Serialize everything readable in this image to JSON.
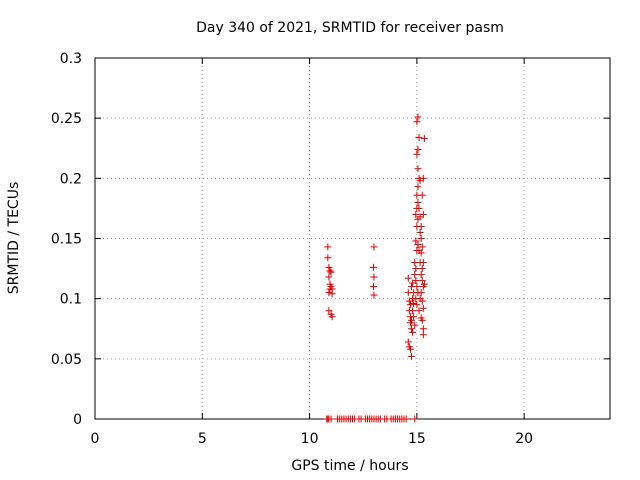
{
  "chart_data": {
    "type": "scatter",
    "title": "Day 340 of 2021, SRMTID for receiver pasm",
    "xlabel": "GPS time / hours",
    "ylabel": "SRMTID / TECUs",
    "xlim": [
      0,
      24
    ],
    "ylim": [
      0,
      0.3
    ],
    "xticks": [
      0,
      5,
      10,
      15,
      20
    ],
    "yticks": [
      0,
      0.05,
      0.1,
      0.15,
      0.2,
      0.25,
      0.3
    ],
    "xtick_labels": [
      "0",
      "5",
      "10",
      "15",
      "20"
    ],
    "ytick_labels": [
      "0",
      "0.05",
      "0.1",
      "0.15",
      "0.2",
      "0.25",
      "0.3"
    ],
    "grid": true,
    "marker": "+",
    "color": "#e00000",
    "series": [
      {
        "points": [
          [
            10.8,
            0
          ],
          [
            10.85,
            0
          ],
          [
            10.9,
            0
          ],
          [
            11.0,
            0
          ],
          [
            11.3,
            0
          ],
          [
            11.4,
            0
          ],
          [
            11.5,
            0
          ],
          [
            11.6,
            0
          ],
          [
            11.7,
            0
          ],
          [
            11.8,
            0
          ],
          [
            11.9,
            0
          ],
          [
            12.0,
            0
          ],
          [
            12.1,
            0
          ],
          [
            12.3,
            0
          ],
          [
            12.4,
            0
          ],
          [
            12.6,
            0
          ],
          [
            12.7,
            0
          ],
          [
            12.8,
            0
          ],
          [
            12.9,
            0
          ],
          [
            13.0,
            0
          ],
          [
            13.1,
            0
          ],
          [
            13.2,
            0
          ],
          [
            13.3,
            0
          ],
          [
            13.5,
            0
          ],
          [
            13.6,
            0
          ],
          [
            13.8,
            0
          ],
          [
            13.9,
            0
          ],
          [
            14.0,
            0
          ],
          [
            14.1,
            0
          ],
          [
            14.2,
            0
          ],
          [
            14.3,
            0
          ],
          [
            14.4,
            0
          ],
          [
            14.5,
            0
          ],
          [
            14.9,
            0
          ],
          [
            10.85,
            0.143
          ],
          [
            10.85,
            0.134
          ],
          [
            10.9,
            0.126
          ],
          [
            10.95,
            0.123
          ],
          [
            11.0,
            0.122
          ],
          [
            10.9,
            0.118
          ],
          [
            10.95,
            0.112
          ],
          [
            11.0,
            0.11
          ],
          [
            11.05,
            0.108
          ],
          [
            10.9,
            0.105
          ],
          [
            10.95,
            0.108
          ],
          [
            11.05,
            0.104
          ],
          [
            10.9,
            0.09
          ],
          [
            11.0,
            0.087
          ],
          [
            11.05,
            0.085
          ],
          [
            13.0,
            0.143
          ],
          [
            12.98,
            0.126
          ],
          [
            13.0,
            0.118
          ],
          [
            12.98,
            0.11
          ],
          [
            13.0,
            0.103
          ],
          [
            14.6,
            0.117
          ],
          [
            14.6,
            0.105
          ],
          [
            14.65,
            0.098
          ],
          [
            14.7,
            0.095
          ],
          [
            14.65,
            0.09
          ],
          [
            14.7,
            0.085
          ],
          [
            14.75,
            0.082
          ],
          [
            14.7,
            0.08
          ],
          [
            14.75,
            0.075
          ],
          [
            14.8,
            0.072
          ],
          [
            14.6,
            0.064
          ],
          [
            14.65,
            0.06
          ],
          [
            14.7,
            0.058
          ],
          [
            14.75,
            0.052
          ],
          [
            14.8,
            0.1
          ],
          [
            14.85,
            0.096
          ],
          [
            14.8,
            0.09
          ],
          [
            14.85,
            0.085
          ],
          [
            14.9,
            0.078
          ],
          [
            14.75,
            0.11
          ],
          [
            14.8,
            0.113
          ],
          [
            14.85,
            0.105
          ],
          [
            14.9,
            0.13
          ],
          [
            14.95,
            0.125
          ],
          [
            14.9,
            0.12
          ],
          [
            14.95,
            0.115
          ],
          [
            15.0,
            0.11
          ],
          [
            14.95,
            0.1
          ],
          [
            15.0,
            0.095
          ],
          [
            15.05,
            0.105
          ],
          [
            15.0,
            0.14
          ],
          [
            15.05,
            0.145
          ],
          [
            14.95,
            0.148
          ],
          [
            15.0,
            0.16
          ],
          [
            15.05,
            0.166
          ],
          [
            14.95,
            0.17
          ],
          [
            15.0,
            0.175
          ],
          [
            15.05,
            0.18
          ],
          [
            15.0,
            0.186
          ],
          [
            15.05,
            0.193
          ],
          [
            15.1,
            0.2
          ],
          [
            15.05,
            0.208
          ],
          [
            15.0,
            0.22
          ],
          [
            15.05,
            0.224
          ],
          [
            15.1,
            0.234
          ],
          [
            15.0,
            0.247
          ],
          [
            15.05,
            0.251
          ],
          [
            15.1,
            0.175
          ],
          [
            15.15,
            0.168
          ],
          [
            15.2,
            0.16
          ],
          [
            15.15,
            0.155
          ],
          [
            15.2,
            0.15
          ],
          [
            15.25,
            0.143
          ],
          [
            15.2,
            0.138
          ],
          [
            15.15,
            0.13
          ],
          [
            15.25,
            0.125
          ],
          [
            15.2,
            0.12
          ],
          [
            15.25,
            0.115
          ],
          [
            15.3,
            0.11
          ],
          [
            15.2,
            0.105
          ],
          [
            15.25,
            0.098
          ],
          [
            15.3,
            0.092
          ],
          [
            15.2,
            0.084
          ],
          [
            15.25,
            0.082
          ],
          [
            15.3,
            0.075
          ],
          [
            15.3,
            0.07
          ],
          [
            15.15,
            0.198
          ],
          [
            15.3,
            0.2
          ],
          [
            15.25,
            0.186
          ],
          [
            15.3,
            0.17
          ],
          [
            15.35,
            0.233
          ],
          [
            15.1,
            0.09
          ],
          [
            15.15,
            0.1
          ],
          [
            15.3,
            0.13
          ],
          [
            15.35,
            0.112
          ],
          [
            15.1,
            0.14
          ]
        ]
      }
    ]
  }
}
